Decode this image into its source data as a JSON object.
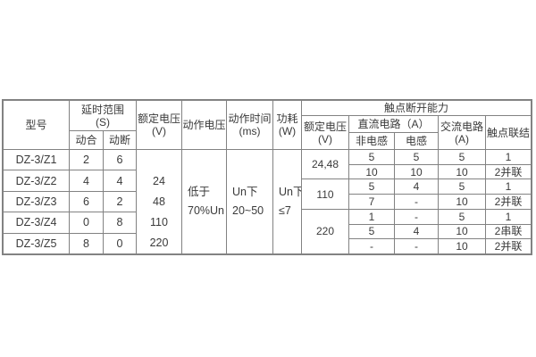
{
  "left": {
    "header": {
      "model": "型号",
      "delay_range": "延时范围",
      "delay_unit": "(S)",
      "on_delay": "动合",
      "off_delay": "动断",
      "rated_voltage": "额定电压",
      "rated_voltage_unit": "(V)",
      "operate_voltage": "动作电压",
      "operate_time": "动作时间",
      "operate_time_unit": "(ms)",
      "power": "功耗",
      "power_unit": "(W)"
    },
    "rows": [
      {
        "model": "DZ-3/Z1",
        "on": "2",
        "off": "6"
      },
      {
        "model": "DZ-3/Z2",
        "on": "4",
        "off": "4"
      },
      {
        "model": "DZ-3/Z3",
        "on": "6",
        "off": "2"
      },
      {
        "model": "DZ-3/Z4",
        "on": "0",
        "off": "8"
      },
      {
        "model": "DZ-3/Z5",
        "on": "8",
        "off": "0"
      }
    ],
    "rated_voltages": [
      "24",
      "48",
      "110",
      "220"
    ],
    "operate_voltage_value": {
      "line1": "低于",
      "line2": "70%Un"
    },
    "operate_time_value": {
      "line1": "Un下",
      "line2": "20~50"
    },
    "power_value": {
      "line1": "Un下",
      "line2": "≤7"
    }
  },
  "right": {
    "title": "触点断开能力",
    "header": {
      "rated_voltage": "额定电压",
      "rated_voltage_unit": "(V)",
      "dc_circuit": "直流电路（A）",
      "non_inductive": "非电感",
      "inductive": "电感",
      "ac_circuit": "交流电路",
      "ac_circuit_unit": "(A)",
      "contact_connection": "触点联结"
    },
    "voltage_groups": [
      "24,48",
      "110",
      "220"
    ],
    "rows": [
      {
        "non_ind": "5",
        "ind": "5",
        "ac": "5",
        "conn": "1"
      },
      {
        "non_ind": "10",
        "ind": "10",
        "ac": "10",
        "conn": "2并联"
      },
      {
        "non_ind": "5",
        "ind": "4",
        "ac": "5",
        "conn": "1"
      },
      {
        "non_ind": "7",
        "ind": "-",
        "ac": "10",
        "conn": "2并联"
      },
      {
        "non_ind": "1",
        "ind": "-",
        "ac": "5",
        "conn": "1"
      },
      {
        "non_ind": "5",
        "ind": "4",
        "ac": "10",
        "conn": "2串联"
      },
      {
        "non_ind": "-",
        "ind": "-",
        "ac": "10",
        "conn": "2并联"
      }
    ]
  },
  "colors": {
    "border": "#828282",
    "text": "#3a3a3a",
    "background": "#ffffff"
  }
}
